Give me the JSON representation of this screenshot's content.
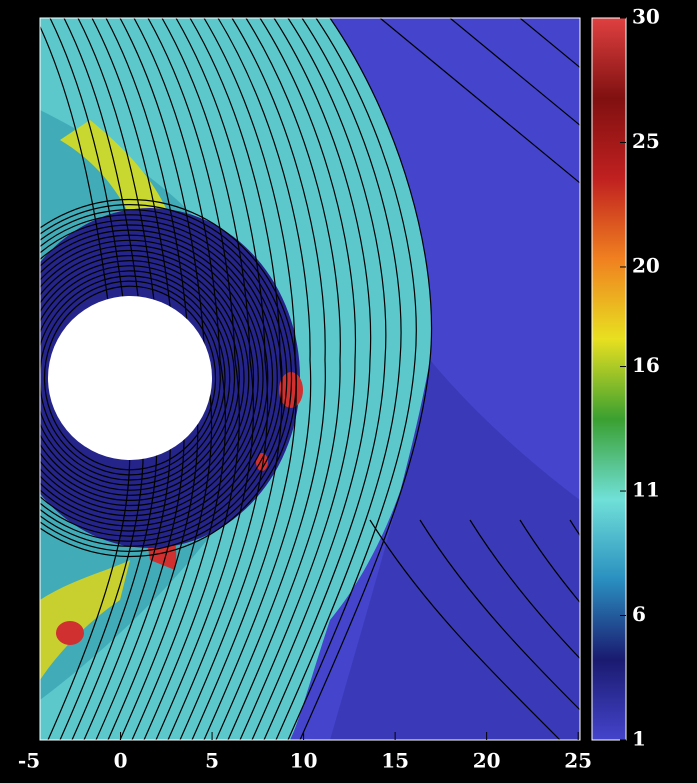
{
  "chart_data": {
    "type": "field",
    "xlim": [
      -4.4,
      25.1
    ],
    "xticks": [
      -5,
      0,
      5,
      10,
      15,
      20,
      25
    ],
    "colorbar": {
      "lim": [
        1,
        30
      ],
      "ticks": [
        1,
        6,
        11,
        16,
        20,
        25,
        30
      ],
      "colormap": [
        "#4444cc",
        "#1a1a70",
        "#2a8fc0",
        "#70e0d8",
        "#3aa030",
        "#e8e020",
        "#f08020",
        "#c02020",
        "#801010",
        "#e04040"
      ]
    }
  }
}
